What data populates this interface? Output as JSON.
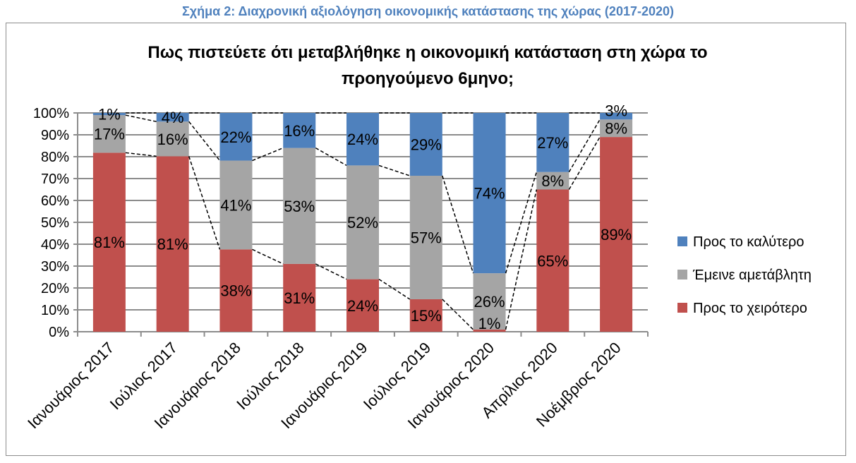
{
  "caption": "Σχήμα 2: Διαχρονική αξιολόγηση οικονομικής κατάστασης της χώρας (2017-2020)",
  "chart_data": {
    "type": "bar",
    "stacked": "percent",
    "title": [
      "Πως πιστεύετε ότι μεταβλήθηκε η οικονομική κατάσταση στη χώρα το",
      "προηγούμενο 6μηνο;"
    ],
    "categories": [
      "Ιανουάριος 2017",
      "Ιούλιος 2017",
      "Ιανουάριος 2018",
      "Ιούλιος 2018",
      "Ιανουάριος 2019",
      "Ιούλιος 2019",
      "Ιανουάριος 2020",
      "Απρίλιος 2020",
      "Νοέμβριος 2020"
    ],
    "series": [
      {
        "name": "Προς το χειρότερο",
        "color": "#C0504D",
        "values": [
          81,
          81,
          38,
          31,
          24,
          15,
          1,
          65,
          89
        ]
      },
      {
        "name": "Έμεινε αμετάβλητη",
        "color": "#A5A5A5",
        "values": [
          17,
          16,
          41,
          53,
          52,
          57,
          26,
          8,
          8
        ]
      },
      {
        "name": "Προς το καλύτερο",
        "color": "#4F81BD",
        "values": [
          1,
          4,
          22,
          16,
          24,
          29,
          74,
          27,
          3
        ]
      }
    ],
    "yticks": [
      "0%",
      "10%",
      "20%",
      "30%",
      "40%",
      "50%",
      "60%",
      "70%",
      "80%",
      "90%",
      "100%"
    ],
    "ylim": [
      0,
      100
    ],
    "grid": true,
    "legend": "right",
    "series_lines": "dashed"
  }
}
